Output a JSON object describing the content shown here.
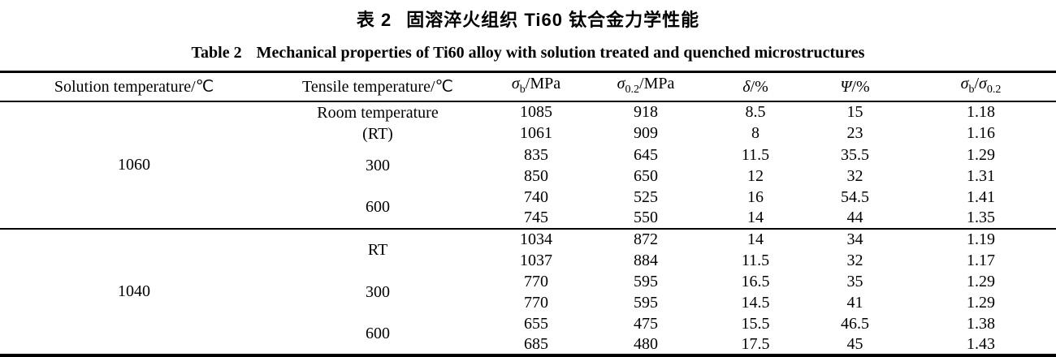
{
  "colors": {
    "background": "#ffffff",
    "text": "#000000",
    "rule": "#000000"
  },
  "titles": {
    "chinese_label": "表 2",
    "chinese_text": "固溶淬火组织 Ti60 钛合金力学性能",
    "english_label": "Table 2",
    "english_text": "Mechanical properties of Ti60 alloy with solution treated and quenched microstructures"
  },
  "chart_data": {
    "type": "table",
    "title": "Table 2 Mechanical properties of Ti60 alloy with solution treated and quenched microstructures",
    "columns_plain": [
      "Solution temperature/℃",
      "Tensile temperature/℃",
      "σb/MPa",
      "σ0.2/MPa",
      "δ/%",
      "Ψ/%",
      "σb/σ0.2"
    ]
  },
  "table": {
    "columns": [
      {
        "segments": [
          {
            "text": "Solution temperature/℃"
          }
        ]
      },
      {
        "segments": [
          {
            "text": "Tensile temperature/℃"
          }
        ]
      },
      {
        "segments": [
          {
            "text": "σ",
            "italic": true
          },
          {
            "text": "b",
            "sub": true
          },
          {
            "text": "/MPa"
          }
        ]
      },
      {
        "segments": [
          {
            "text": "σ",
            "italic": true
          },
          {
            "text": "0.2",
            "sub": true
          },
          {
            "text": "/MPa"
          }
        ]
      },
      {
        "segments": [
          {
            "text": "δ",
            "italic": true
          },
          {
            "text": "/%"
          }
        ]
      },
      {
        "segments": [
          {
            "text": "Ψ",
            "italic": true
          },
          {
            "text": "/%"
          }
        ]
      },
      {
        "segments": [
          {
            "text": "σ",
            "italic": true
          },
          {
            "text": "b",
            "sub": true
          },
          {
            "text": "/"
          },
          {
            "text": "σ",
            "italic": true
          },
          {
            "text": "0.2",
            "sub": true
          }
        ]
      }
    ],
    "groups": [
      {
        "solution_temperature": "1060",
        "subgroups": [
          {
            "tensile_temperature_lines": [
              "Room temperature",
              "(RT)"
            ],
            "rows": [
              [
                "1085",
                "918",
                "8.5",
                "15",
                "1.18"
              ],
              [
                "1061",
                "909",
                "8",
                "23",
                "1.16"
              ]
            ]
          },
          {
            "tensile_temperature_lines": [
              "300"
            ],
            "rows": [
              [
                "835",
                "645",
                "11.5",
                "35.5",
                "1.29"
              ],
              [
                "850",
                "650",
                "12",
                "32",
                "1.31"
              ]
            ]
          },
          {
            "tensile_temperature_lines": [
              "600"
            ],
            "rows": [
              [
                "740",
                "525",
                "16",
                "54.5",
                "1.41"
              ],
              [
                "745",
                "550",
                "14",
                "44",
                "1.35"
              ]
            ]
          }
        ]
      },
      {
        "solution_temperature": "1040",
        "subgroups": [
          {
            "tensile_temperature_lines": [
              "RT"
            ],
            "rows": [
              [
                "1034",
                "872",
                "14",
                "34",
                "1.19"
              ],
              [
                "1037",
                "884",
                "11.5",
                "32",
                "1.17"
              ]
            ]
          },
          {
            "tensile_temperature_lines": [
              "300"
            ],
            "rows": [
              [
                "770",
                "595",
                "16.5",
                "35",
                "1.29"
              ],
              [
                "770",
                "595",
                "14.5",
                "41",
                "1.29"
              ]
            ]
          },
          {
            "tensile_temperature_lines": [
              "600"
            ],
            "rows": [
              [
                "655",
                "475",
                "15.5",
                "46.5",
                "1.38"
              ],
              [
                "685",
                "480",
                "17.5",
                "45",
                "1.43"
              ]
            ]
          }
        ]
      }
    ]
  }
}
